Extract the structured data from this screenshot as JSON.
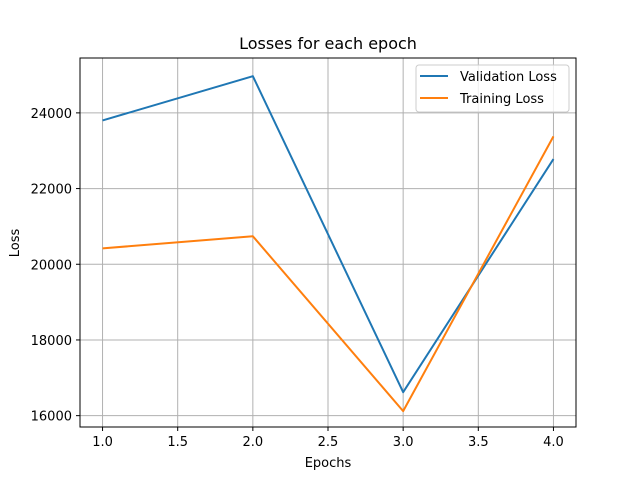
{
  "chart_data": {
    "type": "line",
    "title": "Losses for each epoch",
    "xlabel": "Epochs",
    "ylabel": "Loss",
    "x": [
      1.0,
      2.0,
      3.0,
      4.0
    ],
    "xlim": [
      0.85,
      4.15
    ],
    "ylim": [
      15700,
      25450
    ],
    "xticks": [
      1.0,
      1.5,
      2.0,
      2.5,
      3.0,
      3.5,
      4.0
    ],
    "xtick_labels": [
      "1.0",
      "1.5",
      "2.0",
      "2.5",
      "3.0",
      "3.5",
      "4.0"
    ],
    "yticks": [
      16000,
      18000,
      20000,
      22000,
      24000
    ],
    "ytick_labels": [
      "16000",
      "18000",
      "20000",
      "22000",
      "24000"
    ],
    "grid": true,
    "legend_position": "top-right",
    "series": [
      {
        "name": "Validation Loss",
        "color": "#1f77b4",
        "values": [
          23800,
          24970,
          16620,
          22780
        ]
      },
      {
        "name": "Training Loss",
        "color": "#ff7f0e",
        "values": [
          20420,
          20740,
          16120,
          23380
        ]
      }
    ]
  }
}
